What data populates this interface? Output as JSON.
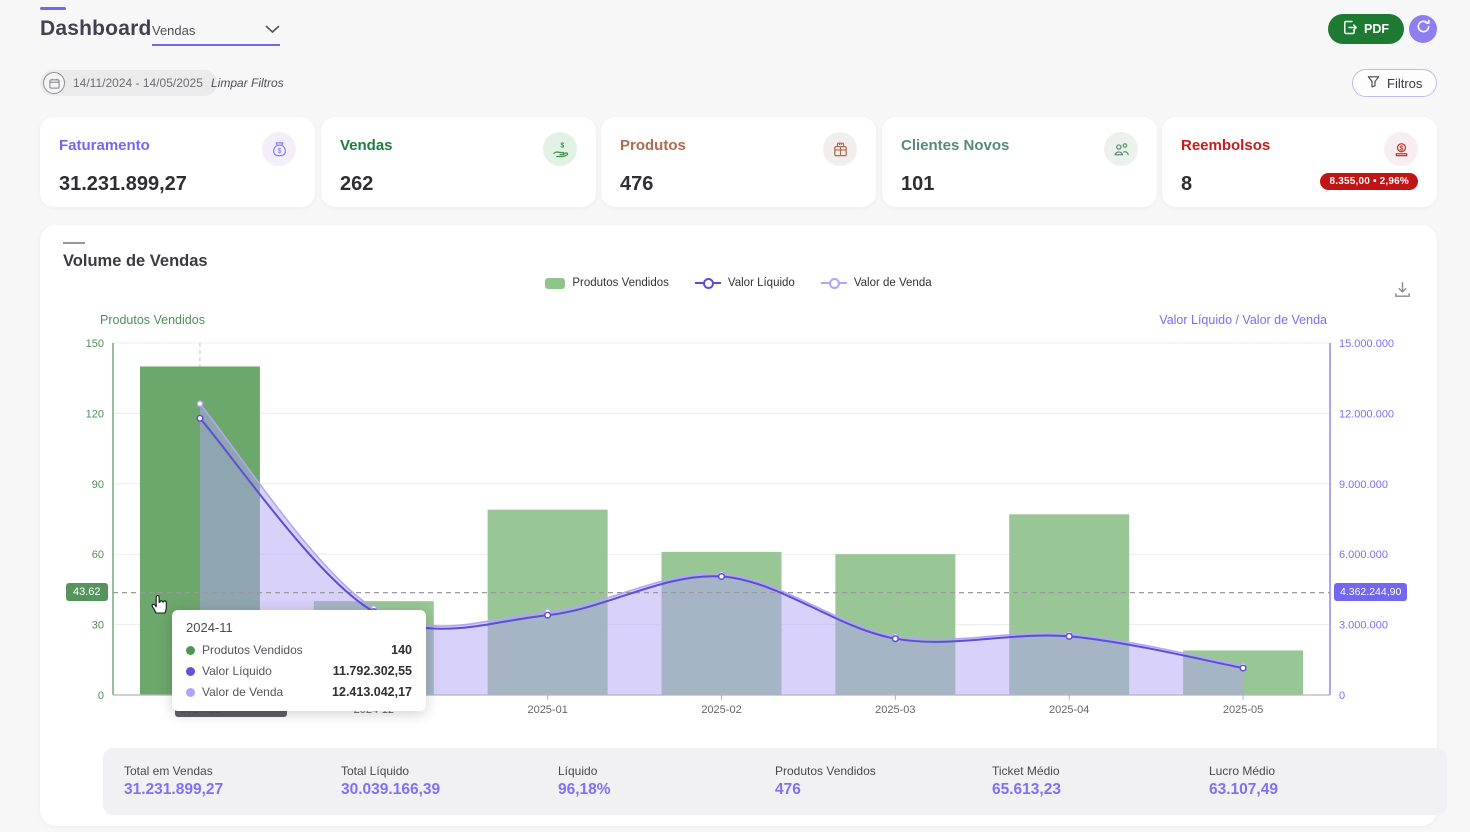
{
  "header": {
    "title": "Dashboard",
    "selector_value": "Vendas",
    "pdf_label": "PDF"
  },
  "filters": {
    "date_range": "14/11/2024 - 14/05/2025",
    "clear_label": "Limpar Filtros",
    "filters_label": "Filtros"
  },
  "kpis": [
    {
      "label": "Faturamento",
      "value": "31.231.899,27",
      "icon": "money-bag-icon",
      "color": "#7367f0"
    },
    {
      "label": "Vendas",
      "value": "262",
      "icon": "hand-coin-icon",
      "color": "#1f7d40"
    },
    {
      "label": "Produtos",
      "value": "476",
      "icon": "package-icon",
      "color": "#b06a4d"
    },
    {
      "label": "Clientes Novos",
      "value": "101",
      "icon": "users-icon",
      "color": "#56897c"
    },
    {
      "label": "Reembolsos",
      "value": "8",
      "icon": "refund-coin-icon",
      "color": "#c21d1d",
      "badge": "8.355,00 • 2,96%"
    }
  ],
  "chart": {
    "title": "Volume de Vendas",
    "crosshair_left_value": "43.62",
    "crosshair_right_value": "4.362.244,90",
    "axis_pointer_label": "2024-11",
    "tooltip": {
      "title": "2024-11",
      "rows": [
        {
          "label": "Produtos Vendidos",
          "value": "140"
        },
        {
          "label": "Valor Líquido",
          "value": "11.792.302,55"
        },
        {
          "label": "Valor de Venda",
          "value": "12.413.042,17"
        }
      ]
    }
  },
  "chart_data": {
    "type": "bar",
    "title": "Volume de Vendas",
    "categories": [
      "2024-11",
      "2024-12",
      "2025-01",
      "2025-02",
      "2025-03",
      "2025-04",
      "2025-05"
    ],
    "series": [
      {
        "name": "Produtos Vendidos",
        "type": "bar",
        "axis": "left",
        "color": "#90c18c",
        "hover_color": "#5f9f5e",
        "hovered_index": 0,
        "values": [
          140,
          40,
          79,
          61,
          60,
          77,
          19
        ]
      },
      {
        "name": "Valor Líquido",
        "type": "line",
        "axis": "right",
        "color": "#5b4fd6",
        "values": [
          11792302.55,
          3550000,
          3400000,
          5050000,
          2400000,
          2500000,
          1150000
        ]
      },
      {
        "name": "Valor de Venda",
        "type": "area",
        "axis": "right",
        "color": "#b3a6f7",
        "fill": "rgba(177,164,246,0.5)",
        "values": [
          12413042.17,
          3700000,
          3550000,
          5150000,
          2500000,
          2600000,
          1250000
        ]
      }
    ],
    "left_axis": {
      "title": "Produtos Vendidos",
      "min": 0,
      "max": 150,
      "ticks": [
        "150",
        "120",
        "90",
        "60",
        "30",
        "0"
      ]
    },
    "right_axis": {
      "title": "Valor Líquido / Valor de Venda",
      "min": 0,
      "max": 15000000,
      "ticks": [
        "15.000.000",
        "12.000.000",
        "9.000.000",
        "6.000.000",
        "3.000.000",
        "0"
      ]
    },
    "legend": [
      "Produtos Vendidos",
      "Valor Líquido",
      "Valor de Venda"
    ],
    "legend_position": "top-center",
    "grid": true,
    "crosshair": {
      "category_index": 0,
      "left_value": 43.62,
      "right_value": 4362244.9
    }
  },
  "summary": [
    {
      "label": "Total em Vendas",
      "value": "31.231.899,27"
    },
    {
      "label": "Total Líquido",
      "value": "30.039.166,39"
    },
    {
      "label": "Líquido",
      "value": "96,18%"
    },
    {
      "label": "Produtos Vendidos",
      "value": "476"
    },
    {
      "label": "Ticket Médio",
      "value": "65.613,23"
    },
    {
      "label": "Lucro Médio",
      "value": "63.107,49"
    }
  ],
  "colors": {
    "accent_purple": "#7367f0",
    "light_purple": "#b3a6f7",
    "bar_green": "#90c18c",
    "bar_green_hover": "#5f9f5e",
    "pdf_green": "#1e7a33",
    "refund_red": "#c11414",
    "page_bg": "#f7f7f8"
  }
}
